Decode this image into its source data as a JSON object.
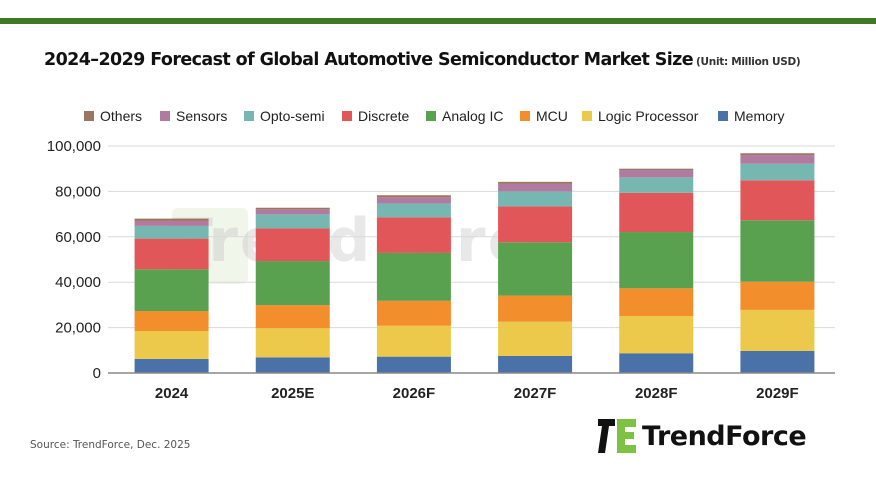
{
  "header": {
    "title": "2024–2029 Forecast of Global Automotive Semiconductor Market Size",
    "unit": "(Unit: Million USD)"
  },
  "footer": {
    "source": "Source: TrendForce, Dec.  2025",
    "logo_text": "TrendForce",
    "watermark_text": "TrendForce"
  },
  "chart_data": {
    "type": "bar",
    "stacked": true,
    "title": "2024–2029 Forecast of Global Automotive Semiconductor Market Size",
    "subtitle": "(Unit: Million USD)",
    "xlabel": "",
    "ylabel": "",
    "categories": [
      "2024",
      "2025E",
      "2026F",
      "2027F",
      "2028F",
      "2029F"
    ],
    "ylim": [
      0,
      100000
    ],
    "yticks": [
      0,
      20000,
      40000,
      60000,
      80000,
      100000
    ],
    "ytick_labels": [
      "0",
      "20,000",
      "40,000",
      "60,000",
      "80,000",
      "100,000"
    ],
    "grid": true,
    "legend_position": "top",
    "legend_order": [
      "Others",
      "Sensors",
      "Opto-semi",
      "Discrete",
      "Analog IC",
      "MCU",
      "Logic Processor",
      "Memory"
    ],
    "series": [
      {
        "name": "Memory",
        "color": "#4a72a8",
        "values": [
          6200,
          6900,
          7200,
          7500,
          8700,
          9700
        ]
      },
      {
        "name": "Logic Processor",
        "color": "#ecc94b",
        "values": [
          12300,
          12800,
          13600,
          15100,
          16400,
          18100
        ]
      },
      {
        "name": "MCU",
        "color": "#f28e2c",
        "values": [
          8800,
          10200,
          11000,
          11500,
          12200,
          12400
        ]
      },
      {
        "name": "Analog IC",
        "color": "#59a14f",
        "values": [
          18400,
          19400,
          21100,
          23500,
          24800,
          27100
        ]
      },
      {
        "name": "Discrete",
        "color": "#e15759",
        "values": [
          13500,
          14400,
          15700,
          15800,
          17300,
          17600
        ]
      },
      {
        "name": "Opto-semi",
        "color": "#76b7b2",
        "values": [
          5600,
          6200,
          6100,
          6600,
          6800,
          7300
        ]
      },
      {
        "name": "Sensors",
        "color": "#b07aa1",
        "values": [
          2200,
          2200,
          2700,
          3300,
          3200,
          3800
        ]
      },
      {
        "name": "Others",
        "color": "#9c755f",
        "values": [
          1000,
          700,
          900,
          900,
          600,
          800
        ]
      }
    ]
  }
}
